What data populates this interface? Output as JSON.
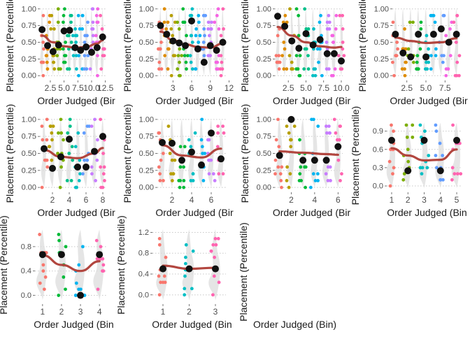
{
  "chart_data": [
    {
      "type": "scatter",
      "xlabel": "Order Judged (Bir",
      "ylabel": "Placement (Percentile)",
      "xlim": [
        0.6,
        12.8
      ],
      "ylim": [
        -0.05,
        1.05
      ],
      "x_ticks": [
        2.5,
        5.0,
        7.5,
        10.0,
        12.5
      ],
      "x_tick_labels": [
        "2.5",
        "5.0",
        "7.5",
        "10.0",
        "12.5"
      ],
      "y_ticks": [
        0,
        0.25,
        0.5,
        0.75,
        1
      ],
      "y_tick_labels": [
        "0.00",
        "0.25",
        "0.50",
        "0.75",
        "1.00"
      ],
      "n_bins": 12,
      "means": [
        {
          "x": 1,
          "y": 0.69
        },
        {
          "x": 2,
          "y": 0.45
        },
        {
          "x": 3,
          "y": 0.36
        },
        {
          "x": 4,
          "y": 0.46
        },
        {
          "x": 5,
          "y": 0.67
        },
        {
          "x": 6,
          "y": 0.68
        },
        {
          "x": 7,
          "y": 0.42
        },
        {
          "x": 8,
          "y": 0.38
        },
        {
          "x": 9,
          "y": 0.43
        },
        {
          "x": 10,
          "y": 0.35
        },
        {
          "x": 11,
          "y": 0.42
        },
        {
          "x": 12,
          "y": 0.58
        }
      ],
      "trend": [
        {
          "x": 1,
          "y": 0.6
        },
        {
          "x": 3,
          "y": 0.5
        },
        {
          "x": 5,
          "y": 0.44
        },
        {
          "x": 7,
          "y": 0.42
        },
        {
          "x": 9,
          "y": 0.43
        },
        {
          "x": 11,
          "y": 0.48
        },
        {
          "x": 12,
          "y": 0.53
        }
      ],
      "jitter_seed": 3
    },
    {
      "type": "scatter",
      "xlabel": "Order Judged (Bir",
      "ylabel": "Placement (Percentile)",
      "xlim": [
        0.5,
        11.5
      ],
      "ylim": [
        -0.05,
        1.05
      ],
      "x_ticks": [
        3,
        6,
        9,
        12
      ],
      "x_tick_labels": [
        "3",
        "6",
        "9",
        "12"
      ],
      "y_ticks": [
        0,
        0.25,
        0.5,
        0.75,
        1
      ],
      "y_tick_labels": [
        "0.00",
        "0.25",
        "0.50",
        "0.75",
        "1.00"
      ],
      "n_bins": 11,
      "means": [
        {
          "x": 1,
          "y": 0.75
        },
        {
          "x": 2,
          "y": 0.62
        },
        {
          "x": 3,
          "y": 0.52
        },
        {
          "x": 4,
          "y": 0.49
        },
        {
          "x": 5,
          "y": 0.45
        },
        {
          "x": 6,
          "y": 0.82
        },
        {
          "x": 7,
          "y": 0.4
        },
        {
          "x": 8,
          "y": 0.2
        },
        {
          "x": 9,
          "y": 0.45
        },
        {
          "x": 10,
          "y": 0.38
        },
        {
          "x": 11,
          "y": 0.5
        }
      ],
      "trend": [
        {
          "x": 1,
          "y": 0.66
        },
        {
          "x": 3,
          "y": 0.53
        },
        {
          "x": 5,
          "y": 0.47
        },
        {
          "x": 7,
          "y": 0.43
        },
        {
          "x": 9,
          "y": 0.42
        },
        {
          "x": 11,
          "y": 0.48
        }
      ],
      "jitter_seed": 11
    },
    {
      "type": "scatter",
      "xlabel": "Order Judged (Bir",
      "ylabel": "Placement (Percentile)",
      "xlim": [
        0.6,
        10.2
      ],
      "ylim": [
        -0.05,
        1.05
      ],
      "x_ticks": [
        2.5,
        5.0,
        7.5,
        10.0
      ],
      "x_tick_labels": [
        "2.5",
        "5.0",
        "7.5",
        "10.0"
      ],
      "y_ticks": [
        0,
        0.25,
        0.5,
        0.75,
        1
      ],
      "y_tick_labels": [
        "0.00",
        "0.25",
        "0.50",
        "0.75",
        "1.00"
      ],
      "n_bins": 10,
      "means": [
        {
          "x": 1,
          "y": 0.89
        },
        {
          "x": 2,
          "y": 0.74
        },
        {
          "x": 3,
          "y": 0.52
        },
        {
          "x": 4,
          "y": 0.41
        },
        {
          "x": 5,
          "y": 0.63
        },
        {
          "x": 6,
          "y": 0.46
        },
        {
          "x": 7,
          "y": 0.54
        },
        {
          "x": 8,
          "y": 0.33
        },
        {
          "x": 9,
          "y": 0.33
        },
        {
          "x": 10,
          "y": 0.22
        }
      ],
      "trend": [
        {
          "x": 1,
          "y": 0.73
        },
        {
          "x": 3,
          "y": 0.6
        },
        {
          "x": 5,
          "y": 0.5
        },
        {
          "x": 7,
          "y": 0.44
        },
        {
          "x": 9,
          "y": 0.42
        },
        {
          "x": 10,
          "y": 0.43
        }
      ],
      "jitter_seed": 23
    },
    {
      "type": "scatter",
      "xlabel": "Order Judged (Bir",
      "ylabel": "Placement (Percentile)",
      "xlim": [
        0.6,
        9.4
      ],
      "ylim": [
        -0.05,
        1.05
      ],
      "x_ticks": [
        2.5,
        5.0,
        7.5
      ],
      "x_tick_labels": [
        "2.5",
        "5.0",
        "7.5"
      ],
      "y_ticks": [
        0,
        0.25,
        0.5,
        0.75,
        1
      ],
      "y_tick_labels": [
        "0.00",
        "0.25",
        "0.50",
        "0.75",
        "1.00"
      ],
      "n_bins": 9,
      "means": [
        {
          "x": 1,
          "y": 0.62
        },
        {
          "x": 2,
          "y": 0.34
        },
        {
          "x": 3,
          "y": 0.28
        },
        {
          "x": 4,
          "y": 0.62
        },
        {
          "x": 5,
          "y": 0.28
        },
        {
          "x": 6,
          "y": 0.62
        },
        {
          "x": 7,
          "y": 0.7
        },
        {
          "x": 8,
          "y": 0.5
        },
        {
          "x": 9,
          "y": 0.62
        }
      ],
      "trend": [
        {
          "x": 1,
          "y": 0.57
        },
        {
          "x": 3,
          "y": 0.52
        },
        {
          "x": 5,
          "y": 0.49
        },
        {
          "x": 7,
          "y": 0.5
        },
        {
          "x": 9,
          "y": 0.56
        }
      ],
      "jitter_seed": 37
    },
    {
      "type": "scatter",
      "xlabel": "Order Judged (Bir",
      "ylabel": "Placement (Percentile)",
      "xlim": [
        0.5,
        8.5
      ],
      "ylim": [
        -0.05,
        1.05
      ],
      "x_ticks": [
        2,
        4,
        6,
        8
      ],
      "x_tick_labels": [
        "2",
        "4",
        "6",
        "8"
      ],
      "y_ticks": [
        0,
        0.25,
        0.5,
        0.75,
        1
      ],
      "y_tick_labels": [
        "0.00",
        "0.25",
        "0.50",
        "0.75",
        "1.00"
      ],
      "n_bins": 8,
      "means": [
        {
          "x": 1,
          "y": 0.57
        },
        {
          "x": 2,
          "y": 0.28
        },
        {
          "x": 3,
          "y": 0.45
        },
        {
          "x": 4,
          "y": 0.71
        },
        {
          "x": 5,
          "y": 0.3
        },
        {
          "x": 6,
          "y": 0.3
        },
        {
          "x": 7,
          "y": 0.53
        },
        {
          "x": 8,
          "y": 0.75
        }
      ],
      "trend": [
        {
          "x": 1,
          "y": 0.55
        },
        {
          "x": 3,
          "y": 0.45
        },
        {
          "x": 5,
          "y": 0.43
        },
        {
          "x": 7,
          "y": 0.5
        },
        {
          "x": 8,
          "y": 0.58
        }
      ],
      "jitter_seed": 41
    },
    {
      "type": "scatter",
      "xlabel": "Order Judged (Bir",
      "ylabel": "Placement (Percentile)",
      "xlim": [
        0.5,
        7.5
      ],
      "ylim": [
        -0.05,
        1.05
      ],
      "x_ticks": [
        2,
        4,
        6
      ],
      "x_tick_labels": [
        "2",
        "4",
        "6"
      ],
      "y_ticks": [
        0,
        0.25,
        0.5,
        0.75,
        1
      ],
      "y_tick_labels": [
        "0.00",
        "0.25",
        "0.50",
        "0.75",
        "1.00"
      ],
      "n_bins": 7,
      "means": [
        {
          "x": 1,
          "y": 0.66
        },
        {
          "x": 2,
          "y": 0.65
        },
        {
          "x": 3,
          "y": 0.4
        },
        {
          "x": 4,
          "y": 0.52
        },
        {
          "x": 5,
          "y": 0.33
        },
        {
          "x": 6,
          "y": 0.8
        },
        {
          "x": 7,
          "y": 0.42
        }
      ],
      "trend": [
        {
          "x": 1,
          "y": 0.62
        },
        {
          "x": 3,
          "y": 0.47
        },
        {
          "x": 5,
          "y": 0.44
        },
        {
          "x": 7,
          "y": 0.57
        }
      ],
      "jitter_seed": 53
    },
    {
      "type": "scatter",
      "xlabel": "Order Judged (Bir",
      "ylabel": "Placement (Percentile)",
      "xlim": [
        0.6,
        6.4
      ],
      "ylim": [
        -0.05,
        1.05
      ],
      "x_ticks": [
        2,
        4,
        6
      ],
      "x_tick_labels": [
        "2",
        "4",
        "6"
      ],
      "y_ticks": [
        0,
        0.25,
        0.5,
        0.75,
        1
      ],
      "y_tick_labels": [
        "0.00",
        "0.25",
        "0.50",
        "0.75",
        "1.00"
      ],
      "n_bins": 6,
      "means": [
        {
          "x": 1,
          "y": 0.47
        },
        {
          "x": 2,
          "y": 1.0
        },
        {
          "x": 3,
          "y": 0.4
        },
        {
          "x": 4,
          "y": 0.4
        },
        {
          "x": 5,
          "y": 0.4
        },
        {
          "x": 6,
          "y": 0.6
        }
      ],
      "trend": [
        {
          "x": 1,
          "y": 0.53
        },
        {
          "x": 3,
          "y": 0.51
        },
        {
          "x": 5,
          "y": 0.49
        },
        {
          "x": 6,
          "y": 0.48
        }
      ],
      "jitter_seed": 67
    },
    {
      "type": "scatter",
      "xlabel": "Order Judged (Bin",
      "ylabel": "Placement (Percentile)",
      "xlim": [
        0.7,
        5.3
      ],
      "ylim": [
        -0.08,
        1.08
      ],
      "x_ticks": [
        1,
        2,
        3,
        4,
        5
      ],
      "x_tick_labels": [
        "1",
        "2",
        "3",
        "4",
        "5"
      ],
      "y_ticks": [
        0,
        0.3,
        0.6,
        0.9
      ],
      "y_tick_labels": [
        "0.0",
        "0.3",
        "0.6",
        "0.9"
      ],
      "n_bins": 5,
      "means": [
        {
          "x": 1,
          "y": 0.75
        },
        {
          "x": 2,
          "y": 0.25
        },
        {
          "x": 3,
          "y": 0.75
        },
        {
          "x": 4,
          "y": 0.25
        },
        {
          "x": 5,
          "y": 0.75
        }
      ],
      "trend": [
        {
          "x": 1,
          "y": 0.62
        },
        {
          "x": 2,
          "y": 0.5
        },
        {
          "x": 3,
          "y": 0.42
        },
        {
          "x": 4,
          "y": 0.43
        },
        {
          "x": 5,
          "y": 0.6
        }
      ],
      "jitter_seed": 71
    },
    {
      "type": "scatter",
      "xlabel": "Order Judged (Bin",
      "ylabel": "Placement (Percentile)",
      "xlim": [
        0.6,
        4.4
      ],
      "ylim": [
        -0.12,
        1.12
      ],
      "x_ticks": [
        1,
        2,
        3,
        4
      ],
      "x_tick_labels": [
        "1",
        "2",
        "3",
        "4"
      ],
      "y_ticks": [
        0,
        0.4,
        0.8
      ],
      "y_tick_labels": [
        "0.0",
        "0.4",
        "0.8"
      ],
      "n_bins": 4,
      "means": [
        {
          "x": 1,
          "y": 0.67
        },
        {
          "x": 2,
          "y": 0.67
        },
        {
          "x": 3,
          "y": 0.0
        },
        {
          "x": 4,
          "y": 0.67
        }
      ],
      "trend": [
        {
          "x": 1,
          "y": 0.66
        },
        {
          "x": 2,
          "y": 0.5
        },
        {
          "x": 3,
          "y": 0.4
        },
        {
          "x": 4,
          "y": 0.56
        }
      ],
      "jitter_seed": 83
    },
    {
      "type": "scatter",
      "xlabel": "Order Judged (Bin",
      "ylabel": "Placement (Percentile)",
      "xlim": [
        0.6,
        3.4
      ],
      "ylim": [
        -0.15,
        1.3
      ],
      "x_ticks": [
        1,
        2,
        3
      ],
      "x_tick_labels": [
        "1",
        "2",
        "3"
      ],
      "y_ticks": [
        0,
        0.4,
        0.8,
        1.2
      ],
      "y_tick_labels": [
        "0.0",
        "0.4",
        "0.8",
        "1.2"
      ],
      "n_bins": 3,
      "means": [
        {
          "x": 1,
          "y": 0.5
        },
        {
          "x": 2,
          "y": 0.5
        },
        {
          "x": 3,
          "y": 0.5
        }
      ],
      "trend": [
        {
          "x": 1,
          "y": 0.56
        },
        {
          "x": 2,
          "y": 0.5
        },
        {
          "x": 3,
          "y": 0.52
        }
      ],
      "jitter_seed": 97
    },
    {
      "type": "scatter",
      "xlabel": "Order Judged (Bin)",
      "ylabel": "Placement (Percentile)",
      "empty": true
    }
  ]
}
